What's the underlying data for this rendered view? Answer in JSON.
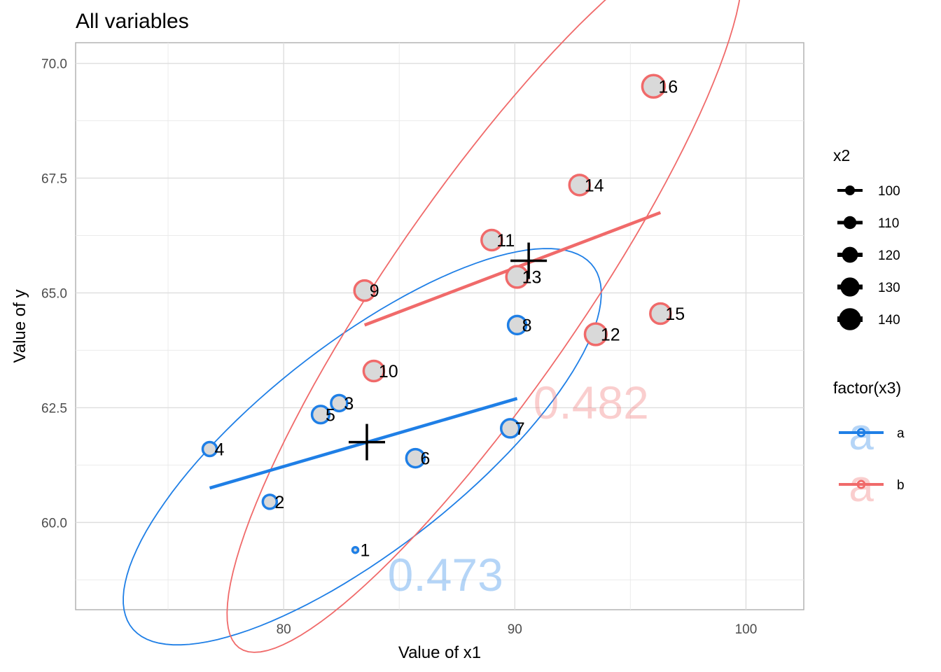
{
  "chart_data": {
    "type": "scatter",
    "title": "All variables",
    "xlabel": "Value of x1",
    "ylabel": "Value of y",
    "xlim": [
      71,
      102.5
    ],
    "ylim": [
      58.1,
      70.45
    ],
    "x_ticks": [
      80,
      90,
      100
    ],
    "x_tick_labels": [
      "80",
      "90",
      "100"
    ],
    "y_ticks": [
      60.0,
      62.5,
      65.0,
      67.5,
      70.0
    ],
    "y_tick_labels": [
      "60.0",
      "62.5",
      "65.0",
      "67.5",
      "70.0"
    ],
    "grid": true,
    "legend_position": "right",
    "size_legend": {
      "title": "x2",
      "values": [
        100,
        110,
        120,
        130,
        140
      ],
      "labels": [
        "100",
        "110",
        "120",
        "130",
        "140"
      ]
    },
    "color_legend": {
      "title": "factor(x3)",
      "keys": [
        "a",
        "b"
      ],
      "labels": [
        "a",
        "b"
      ],
      "key_glyph": "a"
    },
    "colors": {
      "a": "#1f7fe6",
      "b": "#f06a6a",
      "point_fill": "#d9d9d9"
    },
    "series": [
      {
        "name": "a",
        "color": "#1f7fe6",
        "points": [
          {
            "label": "1",
            "x": 83.1,
            "y": 59.4,
            "x2": 100
          },
          {
            "label": "2",
            "x": 79.4,
            "y": 60.45,
            "x2": 120
          },
          {
            "label": "3",
            "x": 82.4,
            "y": 62.6,
            "x2": 125
          },
          {
            "label": "4",
            "x": 76.8,
            "y": 61.6,
            "x2": 120
          },
          {
            "label": "5",
            "x": 81.6,
            "y": 62.35,
            "x2": 128
          },
          {
            "label": "6",
            "x": 85.7,
            "y": 61.4,
            "x2": 130
          },
          {
            "label": "7",
            "x": 89.8,
            "y": 62.05,
            "x2": 130
          },
          {
            "label": "8",
            "x": 90.1,
            "y": 64.3,
            "x2": 130
          }
        ],
        "fit_line": {
          "x": [
            76.8,
            90.1
          ],
          "y": [
            60.75,
            62.7
          ]
        },
        "centroid": {
          "x": 83.6,
          "y": 61.75
        },
        "ellipse": {
          "cx": 83.4,
          "cy": 61.65,
          "rx": 10.9,
          "ry": 2.6,
          "angle_deg": -19
        },
        "correlation_label": "0.473",
        "correlation_position": {
          "x": 87.0,
          "y": 58.85
        }
      },
      {
        "name": "b",
        "color": "#f06a6a",
        "points": [
          {
            "label": "9",
            "x": 83.5,
            "y": 65.05,
            "x2": 135
          },
          {
            "label": "10",
            "x": 83.9,
            "y": 63.3,
            "x2": 135
          },
          {
            "label": "11",
            "x": 89.0,
            "y": 66.15,
            "x2": 135
          },
          {
            "label": "12",
            "x": 93.5,
            "y": 64.1,
            "x2": 138
          },
          {
            "label": "13",
            "x": 90.1,
            "y": 65.35,
            "x2": 138
          },
          {
            "label": "14",
            "x": 92.8,
            "y": 67.35,
            "x2": 135
          },
          {
            "label": "15",
            "x": 96.3,
            "y": 64.55,
            "x2": 135
          },
          {
            "label": "16",
            "x": 96.0,
            "y": 69.5,
            "x2": 140
          }
        ],
        "fit_line": {
          "x": [
            83.5,
            96.3
          ],
          "y": [
            64.3,
            66.75
          ]
        },
        "centroid": {
          "x": 90.6,
          "y": 65.7
        },
        "ellipse": {
          "cx": 88.7,
          "cy": 65.0,
          "rx": 13.3,
          "ry": 2.95,
          "angle_deg": -34
        },
        "correlation_label": "0.482",
        "correlation_position": {
          "x": 93.3,
          "y": 62.6
        }
      }
    ]
  }
}
